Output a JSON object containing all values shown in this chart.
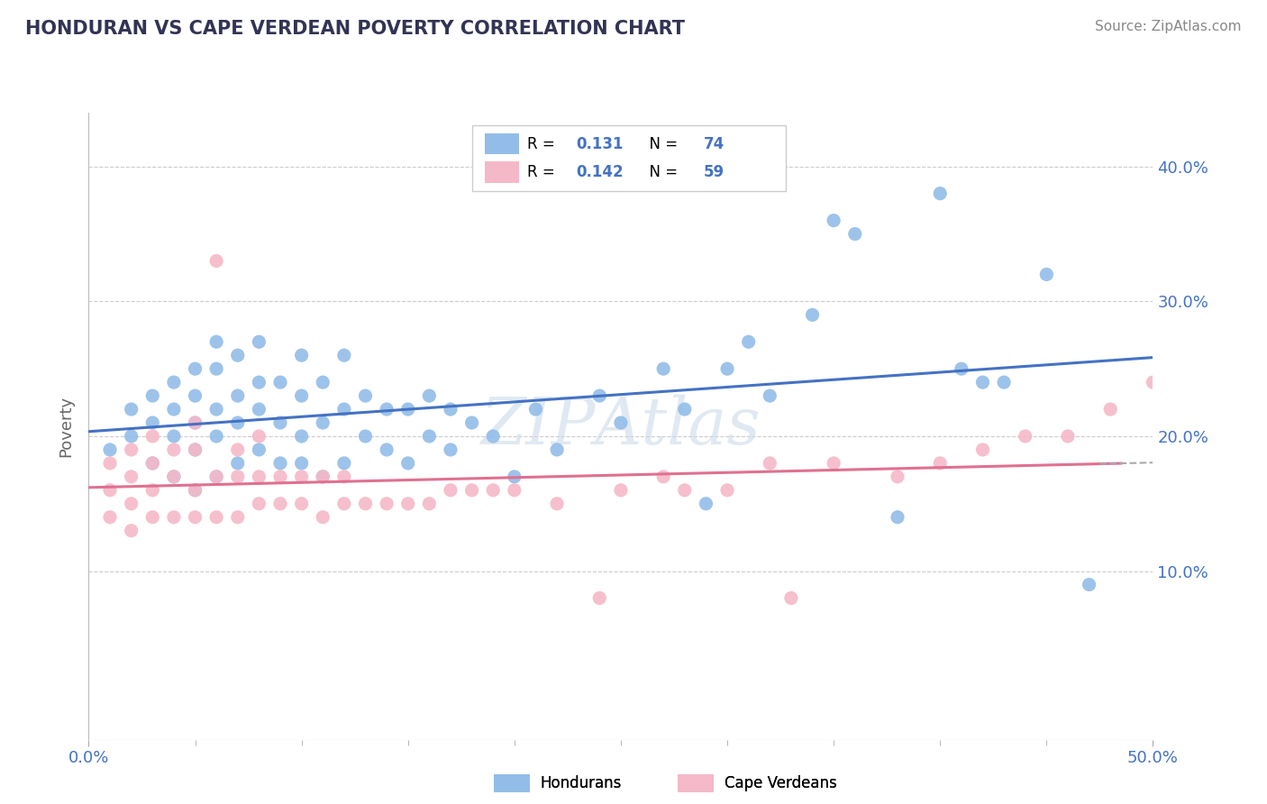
{
  "title": "HONDURAN VS CAPE VERDEAN POVERTY CORRELATION CHART",
  "source": "Source: ZipAtlas.com",
  "ylabel": "Poverty",
  "xlim": [
    0.0,
    0.5
  ],
  "ylim": [
    -0.025,
    0.44
  ],
  "yticks": [
    0.1,
    0.2,
    0.3,
    0.4
  ],
  "ytick_labels": [
    "10.0%",
    "20.0%",
    "30.0%",
    "40.0%"
  ],
  "honduran_color": "#92BDE8",
  "cape_verdean_color": "#F5B8C8",
  "honduran_line_color": "#4472C4",
  "cape_verdean_line_color": "#E07090",
  "axis_color": "#4472C4",
  "title_color": "#333355",
  "honduran_x": [
    0.01,
    0.02,
    0.02,
    0.03,
    0.03,
    0.03,
    0.04,
    0.04,
    0.04,
    0.04,
    0.05,
    0.05,
    0.05,
    0.05,
    0.05,
    0.06,
    0.06,
    0.06,
    0.06,
    0.06,
    0.07,
    0.07,
    0.07,
    0.07,
    0.08,
    0.08,
    0.08,
    0.08,
    0.09,
    0.09,
    0.09,
    0.1,
    0.1,
    0.1,
    0.1,
    0.11,
    0.11,
    0.11,
    0.12,
    0.12,
    0.12,
    0.13,
    0.13,
    0.14,
    0.14,
    0.15,
    0.15,
    0.16,
    0.16,
    0.17,
    0.17,
    0.18,
    0.19,
    0.2,
    0.21,
    0.22,
    0.24,
    0.25,
    0.27,
    0.28,
    0.29,
    0.3,
    0.31,
    0.32,
    0.34,
    0.35,
    0.36,
    0.38,
    0.4,
    0.41,
    0.42,
    0.43,
    0.45,
    0.47
  ],
  "honduran_y": [
    0.19,
    0.2,
    0.22,
    0.18,
    0.21,
    0.23,
    0.17,
    0.2,
    0.22,
    0.24,
    0.16,
    0.19,
    0.21,
    0.23,
    0.25,
    0.17,
    0.2,
    0.22,
    0.25,
    0.27,
    0.18,
    0.21,
    0.23,
    0.26,
    0.19,
    0.22,
    0.24,
    0.27,
    0.18,
    0.21,
    0.24,
    0.18,
    0.2,
    0.23,
    0.26,
    0.17,
    0.21,
    0.24,
    0.18,
    0.22,
    0.26,
    0.2,
    0.23,
    0.19,
    0.22,
    0.18,
    0.22,
    0.2,
    0.23,
    0.19,
    0.22,
    0.21,
    0.2,
    0.17,
    0.22,
    0.19,
    0.23,
    0.21,
    0.25,
    0.22,
    0.15,
    0.25,
    0.27,
    0.23,
    0.29,
    0.36,
    0.35,
    0.14,
    0.38,
    0.25,
    0.24,
    0.24,
    0.32,
    0.09
  ],
  "cape_verdean_x": [
    0.01,
    0.01,
    0.01,
    0.02,
    0.02,
    0.02,
    0.02,
    0.03,
    0.03,
    0.03,
    0.03,
    0.04,
    0.04,
    0.04,
    0.05,
    0.05,
    0.05,
    0.05,
    0.06,
    0.06,
    0.06,
    0.07,
    0.07,
    0.07,
    0.08,
    0.08,
    0.08,
    0.09,
    0.09,
    0.1,
    0.1,
    0.11,
    0.11,
    0.12,
    0.12,
    0.13,
    0.14,
    0.15,
    0.16,
    0.17,
    0.18,
    0.19,
    0.2,
    0.22,
    0.24,
    0.25,
    0.27,
    0.28,
    0.3,
    0.32,
    0.33,
    0.35,
    0.38,
    0.4,
    0.42,
    0.44,
    0.46,
    0.48,
    0.5
  ],
  "cape_verdean_y": [
    0.14,
    0.16,
    0.18,
    0.13,
    0.15,
    0.17,
    0.19,
    0.14,
    0.16,
    0.18,
    0.2,
    0.14,
    0.17,
    0.19,
    0.14,
    0.16,
    0.19,
    0.21,
    0.14,
    0.17,
    0.33,
    0.14,
    0.17,
    0.19,
    0.15,
    0.17,
    0.2,
    0.15,
    0.17,
    0.15,
    0.17,
    0.14,
    0.17,
    0.15,
    0.17,
    0.15,
    0.15,
    0.15,
    0.15,
    0.16,
    0.16,
    0.16,
    0.16,
    0.15,
    0.08,
    0.16,
    0.17,
    0.16,
    0.16,
    0.18,
    0.08,
    0.18,
    0.17,
    0.18,
    0.19,
    0.2,
    0.2,
    0.22,
    0.24
  ]
}
